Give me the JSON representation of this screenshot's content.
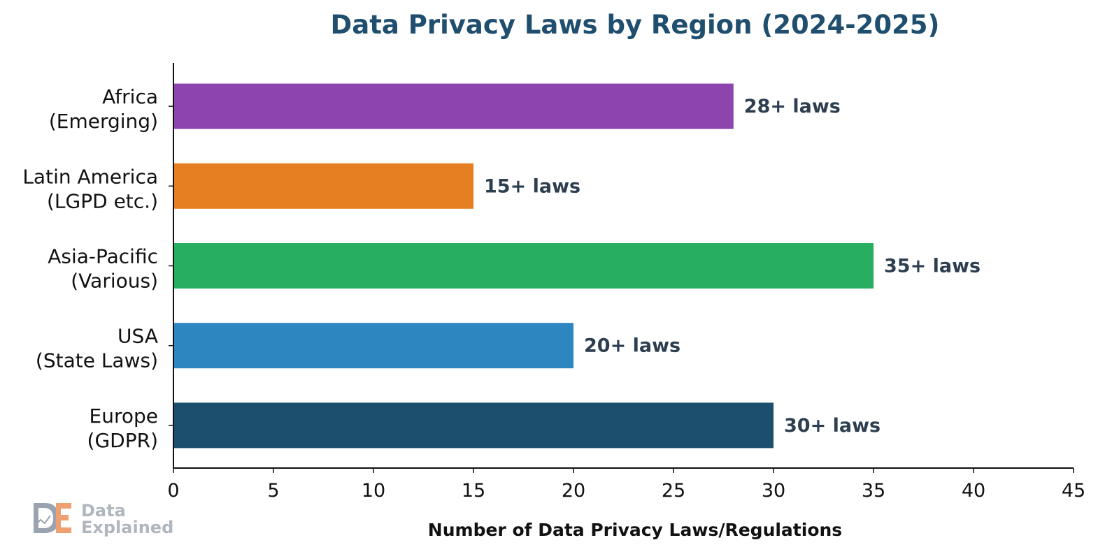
{
  "chart_data": {
    "type": "bar",
    "orientation": "horizontal",
    "title": "Data Privacy Laws by Region (2024-2025)",
    "xlabel": "Number of Data Privacy Laws/Regulations",
    "ylabel": "",
    "xlim": [
      0,
      45
    ],
    "xticks": [
      0,
      5,
      10,
      15,
      20,
      25,
      30,
      35,
      40,
      45
    ],
    "grid": false,
    "categories": [
      [
        "Europe",
        "(GDPR)"
      ],
      [
        "USA",
        "(State Laws)"
      ],
      [
        "Asia-Pacific",
        "(Various)"
      ],
      [
        "Latin America",
        "(LGPD etc.)"
      ],
      [
        "Africa",
        "(Emerging)"
      ]
    ],
    "values": [
      30,
      20,
      35,
      15,
      28
    ],
    "data_labels": [
      "30+ laws",
      "20+ laws",
      "35+ laws",
      "15+ laws",
      "28+ laws"
    ],
    "colors": [
      "#1c4e6e",
      "#2e86c1",
      "#28ae60",
      "#e67e22",
      "#8e44ad"
    ]
  },
  "style": {
    "title_color": "#1f4e6e",
    "label_color": "#2c3e50",
    "axis_color": "#111111"
  },
  "watermark": {
    "logo_letters": "DE",
    "line1": "Data",
    "line2": "Explained",
    "colors": {
      "d": "#9aa3b0",
      "e": "#f0a070",
      "text": "#b0b6bf"
    }
  }
}
